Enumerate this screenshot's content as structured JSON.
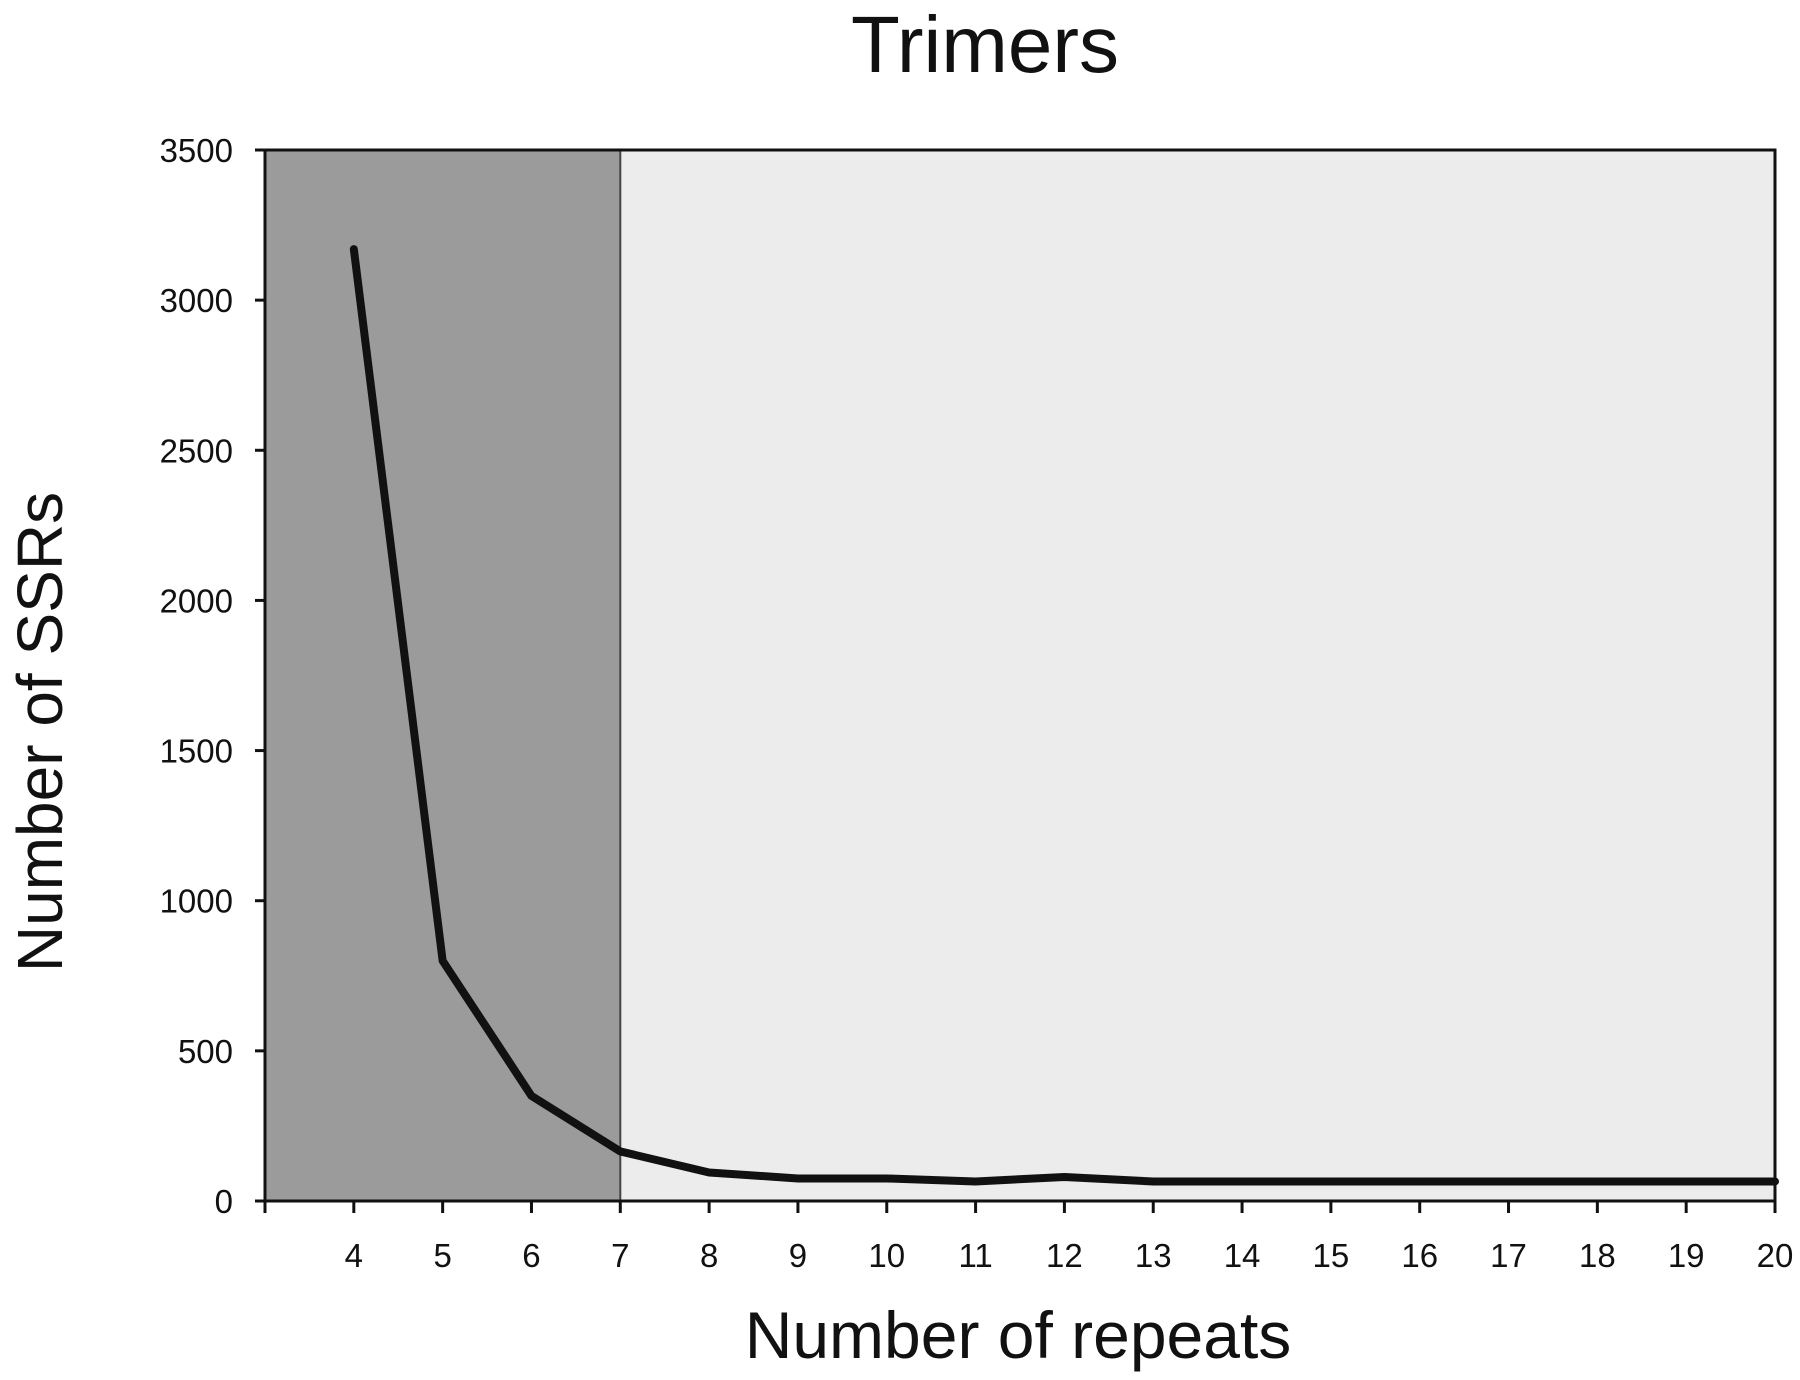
{
  "chart_data": {
    "type": "line",
    "title": "Trimers",
    "xlabel": "Number of repeats",
    "ylabel": "Number of SSRs",
    "x": [
      4,
      5,
      6,
      7,
      8,
      9,
      10,
      11,
      12,
      13,
      14,
      15,
      16,
      17,
      18,
      19,
      20
    ],
    "series": [
      {
        "values": [
          3170,
          800,
          350,
          165,
          95,
          75,
          75,
          65,
          80,
          65,
          65,
          65,
          65,
          65,
          65,
          65,
          65
        ]
      }
    ],
    "x_ticks": [
      4,
      5,
      6,
      7,
      8,
      9,
      10,
      11,
      12,
      13,
      14,
      15,
      16,
      17,
      18,
      19,
      20
    ],
    "y_ticks": [
      0,
      500,
      1000,
      1500,
      2000,
      2500,
      3000,
      3500
    ],
    "xlim": [
      3,
      20
    ],
    "ylim": [
      0,
      3500
    ],
    "shaded_region": {
      "from": 3,
      "to": 7
    },
    "grid": false,
    "colors": {
      "shaded": "#9b9b9b",
      "plot_bg": "#ececec",
      "line": "#111111",
      "axis": "#111111"
    }
  }
}
